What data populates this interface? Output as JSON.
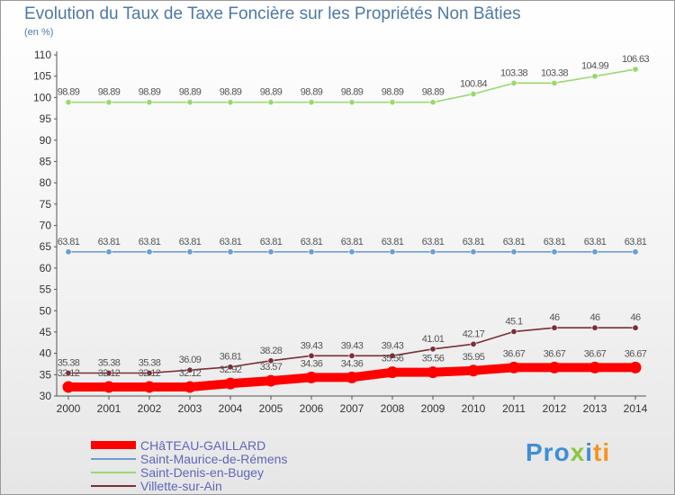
{
  "title": "Evolution du Taux de Taxe Foncière sur les Propriétés Non Bâties",
  "unit_label": "(en %)",
  "logo": {
    "part1": "Pro",
    "part2": "x",
    "part3": "i",
    "part4": "ti"
  },
  "chart_data": {
    "type": "line",
    "title": "Evolution du Taux de Taxe Foncière sur les Propriétés Non Bâties",
    "ylabel": "(en %)",
    "x": [
      2000,
      2001,
      2002,
      2003,
      2004,
      2005,
      2006,
      2007,
      2008,
      2009,
      2010,
      2011,
      2012,
      2013,
      2014
    ],
    "ylim": [
      30,
      110
    ],
    "yticks": [
      30,
      35,
      40,
      45,
      50,
      55,
      60,
      65,
      70,
      75,
      80,
      85,
      90,
      95,
      100,
      105,
      110
    ],
    "grid": false,
    "legend_position": "bottom-left",
    "series": [
      {
        "name": "CHâTEAU-GAILLARD",
        "color": "#ff0000",
        "values": [
          32.12,
          32.12,
          32.12,
          32.12,
          32.92,
          33.57,
          34.36,
          34.36,
          35.56,
          35.56,
          35.95,
          36.67,
          36.67,
          36.67,
          36.67
        ]
      },
      {
        "name": "Saint-Maurice-de-Rémens",
        "color": "#6a9ed3",
        "values": [
          63.81,
          63.81,
          63.81,
          63.81,
          63.81,
          63.81,
          63.81,
          63.81,
          63.81,
          63.81,
          63.81,
          63.81,
          63.81,
          63.81,
          63.81
        ]
      },
      {
        "name": "Saint-Denis-en-Bugey",
        "color": "#97d96e",
        "values": [
          98.89,
          98.89,
          98.89,
          98.89,
          98.89,
          98.89,
          98.89,
          98.89,
          98.89,
          98.89,
          100.84,
          103.38,
          103.38,
          104.99,
          106.63
        ]
      },
      {
        "name": "Villette-sur-Ain",
        "color": "#7a2e36",
        "values": [
          35.38,
          35.38,
          35.38,
          36.09,
          36.81,
          38.28,
          39.43,
          39.43,
          39.43,
          41.01,
          42.17,
          45.1,
          46,
          46,
          46
        ]
      }
    ],
    "data_labels": [
      [
        "32.12",
        "32.12",
        "32.12",
        "32.12",
        "32.92",
        "33.57",
        "34.36",
        "34.36",
        "35.56",
        "35.56",
        "35.95",
        "36.67",
        "36.67",
        "36.67",
        "36.67"
      ],
      [
        "63.81",
        "63.81",
        "63.81",
        "63.81",
        "63.81",
        "63.81",
        "63.81",
        "63.81",
        "63.81",
        "63.81",
        "63.81",
        "63.81",
        "63.81",
        "63.81",
        "63.81"
      ],
      [
        "98.89",
        "98.89",
        "98.89",
        "98.89",
        "98.89",
        "98.89",
        "98.89",
        "98.89",
        "98.89",
        "98.89",
        "100.84",
        "103.38",
        "103.38",
        "104.99",
        "106.63"
      ],
      [
        "35.38",
        "35.38",
        "35.38",
        "36.09",
        "36.81",
        "38.28",
        "39.43",
        "39.43",
        "39.43",
        "41.01",
        "42.17",
        "45.1",
        "46",
        "46",
        "46"
      ]
    ]
  }
}
